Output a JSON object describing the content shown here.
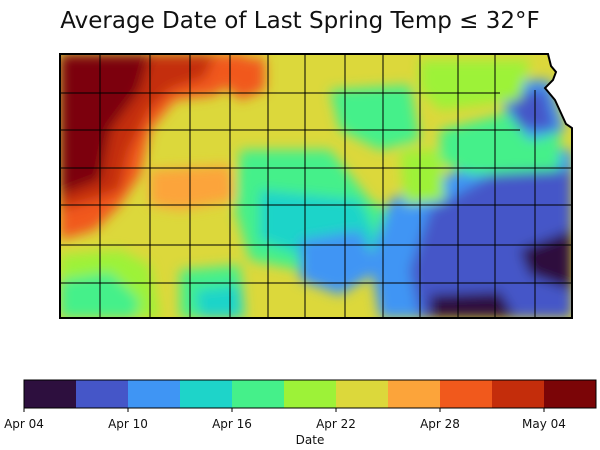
{
  "title": "Average Date of Last Spring Temp ≤ 32°F",
  "colorbar": {
    "label": "Date",
    "bins": [
      "#2d0f3e",
      "#4556c8",
      "#3f95f4",
      "#1ed4c9",
      "#45f08a",
      "#9df238",
      "#dcd83b",
      "#fca43a",
      "#f1591c",
      "#c42d0b",
      "#7b0507"
    ],
    "tick_labels": [
      "Apr 04",
      "Apr 10",
      "Apr 16",
      "Apr 22",
      "Apr 28",
      "May 04"
    ]
  },
  "map": {
    "region": "Kansas",
    "colors": {
      "base": "#dcd83b",
      "outline": "#000000"
    }
  }
}
